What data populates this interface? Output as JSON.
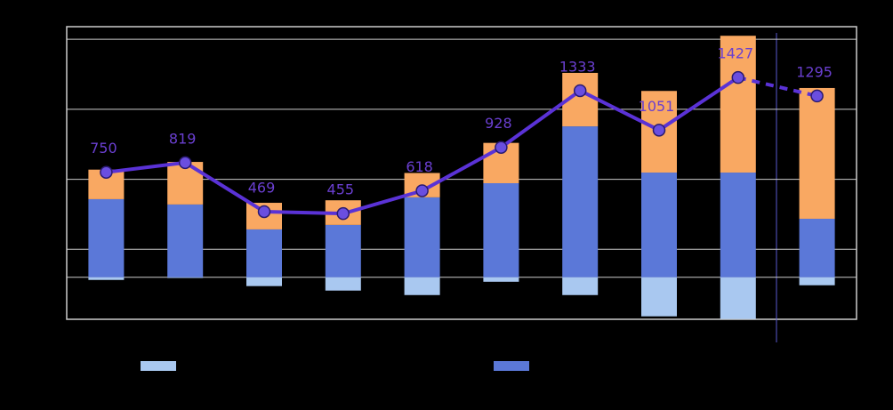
{
  "chart_data": {
    "type": "bar_line",
    "ylim": [
      -300,
      1790
    ],
    "yticks": [
      0,
      200,
      700,
      1200,
      1700
    ],
    "grid": true,
    "series": [
      {
        "kind": "bar",
        "color": "#a9c8f0",
        "values": [
          -19,
          -5,
          -63,
          -95,
          -127,
          -32,
          -127,
          -279,
          -298,
          -57
        ]
      },
      {
        "kind": "bar",
        "color": "#5b78d8",
        "values": [
          558,
          520,
          342,
          374,
          571,
          672,
          1078,
          748,
          748,
          418
        ]
      },
      {
        "kind": "bar",
        "color": "#f9a862",
        "values": [
          211,
          304,
          190,
          176,
          174,
          288,
          382,
          583,
          977,
          934
        ]
      },
      {
        "kind": "line",
        "color": "#5a32d6",
        "values": [
          750,
          819,
          469,
          455,
          618,
          928,
          1333,
          1051,
          1427,
          1295
        ],
        "dashed_last_segment": true
      }
    ]
  }
}
